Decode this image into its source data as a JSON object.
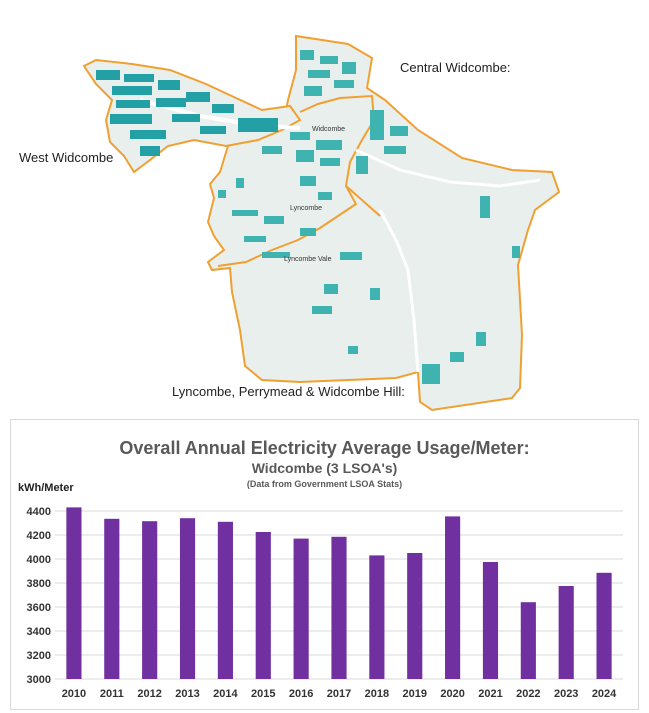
{
  "map": {
    "labels": {
      "west": "West Widcombe",
      "central": "Central Widcombe:",
      "lyncombe_area": "Lyncombe, Perrymead & Widcombe Hill:"
    },
    "place_names": {
      "widcombe": "Widcombe",
      "lyncombe": "Lyncombe",
      "lyncombe_vale": "Lyncombe Vale"
    },
    "colors": {
      "boundary": "#f0a030",
      "land": "#e9efec",
      "buildings": "#3fb3b0",
      "buildings_dense": "#22a0a6"
    }
  },
  "chart_data": {
    "type": "bar",
    "title": "Overall Annual Electricity Average Usage/Meter:",
    "subtitle": "Widcombe (3 LSOA's)",
    "note": "(Data from Government LSOA Stats)",
    "ylabel": "kWh/Meter",
    "xlabel": "",
    "categories": [
      "2010",
      "2011",
      "2012",
      "2013",
      "2014",
      "2015",
      "2016",
      "2017",
      "2018",
      "2019",
      "2020",
      "2021",
      "2022",
      "2023",
      "2024"
    ],
    "values": [
      4430,
      4335,
      4315,
      4340,
      4310,
      4225,
      4170,
      4185,
      4030,
      4050,
      4355,
      3975,
      3640,
      3775,
      3885
    ],
    "ylim": [
      3000,
      4400
    ],
    "yticks": [
      "3000",
      "3200",
      "3400",
      "3600",
      "3800",
      "4000",
      "4200",
      "4400"
    ],
    "grid": true,
    "bar_color": "#7030a0"
  }
}
